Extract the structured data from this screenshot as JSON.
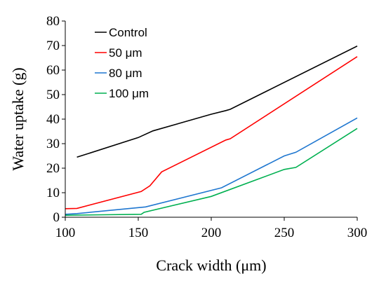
{
  "chart_data": {
    "type": "line",
    "title": "",
    "xlabel": "Crack width (μm)",
    "ylabel": "Water uptake (g)",
    "xlim": [
      100,
      300
    ],
    "ylim": [
      0,
      80
    ],
    "x_ticks": [
      "100",
      "150",
      "200",
      "250",
      "300"
    ],
    "y_ticks": [
      "0",
      "10",
      "20",
      "30",
      "40",
      "50",
      "60",
      "70",
      "80"
    ],
    "grid": false,
    "legend_position": "top-left",
    "series": [
      {
        "name": "Control",
        "color": "#000000",
        "points": [
          [
            108,
            24.5
          ],
          [
            150,
            32.5
          ],
          [
            160,
            35.2
          ],
          [
            200,
            42
          ],
          [
            210,
            43.5
          ],
          [
            213,
            44
          ],
          [
            300,
            69.8
          ]
        ]
      },
      {
        "name": "50 μm",
        "color": "#ff0000",
        "points": [
          [
            100,
            3.5
          ],
          [
            108,
            3.6
          ],
          [
            152,
            10.5
          ],
          [
            158,
            12.8
          ],
          [
            166,
            18.5
          ],
          [
            210,
            31.5
          ],
          [
            213,
            32
          ],
          [
            300,
            65.5
          ]
        ]
      },
      {
        "name": "80 μm",
        "color": "#1f77d0",
        "points": [
          [
            100,
            1.2
          ],
          [
            108,
            1.5
          ],
          [
            155,
            4.2
          ],
          [
            207,
            12
          ],
          [
            250,
            25
          ],
          [
            258,
            26.5
          ],
          [
            300,
            40.5
          ]
        ]
      },
      {
        "name": "100 μm",
        "color": "#00b050",
        "points": [
          [
            100,
            0.8
          ],
          [
            152,
            1.2
          ],
          [
            154,
            2
          ],
          [
            200,
            8.5
          ],
          [
            250,
            19.5
          ],
          [
            258,
            20.3
          ],
          [
            300,
            36.2
          ]
        ]
      }
    ]
  }
}
